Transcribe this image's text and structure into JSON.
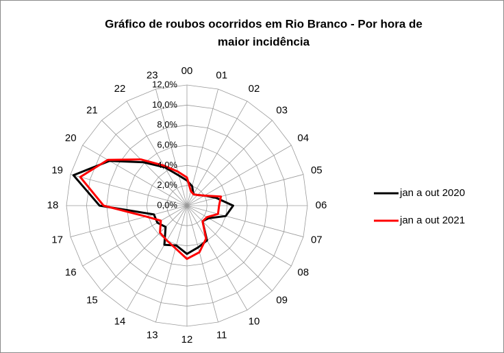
{
  "chart_data": {
    "type": "radar",
    "title": [
      "Gráfico de roubos ocorridos em Rio  Branco - Por hora de",
      "maior incidência"
    ],
    "categories": [
      "00",
      "01",
      "02",
      "03",
      "04",
      "05",
      "06",
      "07",
      "08",
      "09",
      "10",
      "11",
      "12",
      "13",
      "14",
      "15",
      "16",
      "17",
      "18",
      "19",
      "20",
      "21",
      "22",
      "23"
    ],
    "series": [
      {
        "name": "jan a out 2020",
        "color": "#000000",
        "values": [
          2.5,
          2.0,
          1.3,
          1.5,
          2.0,
          3.0,
          4.6,
          4.0,
          2.5,
          2.2,
          4.0,
          4.3,
          4.8,
          4.1,
          4.5,
          3.0,
          3.4,
          3.4,
          8.7,
          11.7,
          8.9,
          6.1,
          4.4,
          3.1
        ]
      },
      {
        "name": "jan a out 2021",
        "color": "#ff0000",
        "values": [
          2.8,
          1.5,
          1.3,
          1.5,
          2.0,
          3.5,
          3.2,
          3.2,
          2.3,
          2.2,
          3.8,
          4.8,
          5.3,
          4.4,
          4.0,
          3.8,
          3.0,
          4.2,
          8.3,
          11.0,
          9.1,
          6.5,
          4.6,
          3.5
        ]
      }
    ],
    "ylim": [
      0,
      12
    ],
    "yticks": [
      {
        "value": 0,
        "label": "0,0%"
      },
      {
        "value": 2,
        "label": "2,0%"
      },
      {
        "value": 4,
        "label": "4,0%"
      },
      {
        "value": 6,
        "label": "6,0%"
      },
      {
        "value": 8,
        "label": "8,0%"
      },
      {
        "value": 10,
        "label": "10,0%"
      },
      {
        "value": 12,
        "label": "12,0%"
      }
    ],
    "grid": true,
    "legend": "right"
  }
}
